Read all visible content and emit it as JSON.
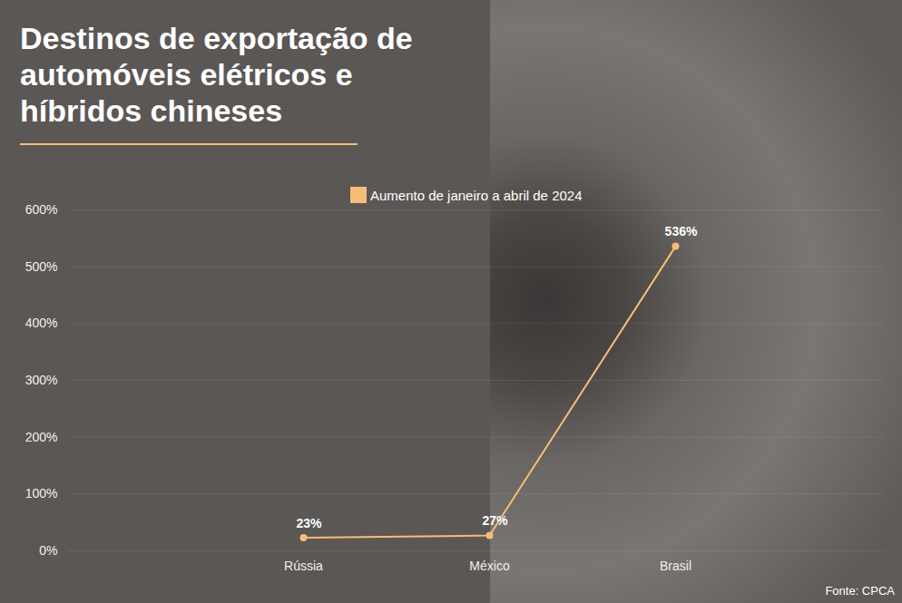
{
  "chart_data": {
    "type": "line",
    "title": "Destinos de exportação de automóveis elétricos e híbridos chineses",
    "categories": [
      "Rússia",
      "México",
      "Brasil"
    ],
    "series": [
      {
        "name": "Aumento de janeiro a abril de 2024",
        "color": "#f6bd78",
        "values": [
          23,
          27,
          536
        ],
        "marker": "circle",
        "line_style": "solid"
      }
    ],
    "value_labels": [
      "23%",
      "27%",
      "536%"
    ],
    "data_labels": true,
    "ylim": [
      0,
      600
    ],
    "yticks": [
      {
        "value": 0,
        "label": "0%"
      },
      {
        "value": 100,
        "label": "100%"
      },
      {
        "value": 200,
        "label": "200%"
      },
      {
        "value": 300,
        "label": "300%"
      },
      {
        "value": 400,
        "label": "400%"
      },
      {
        "value": 500,
        "label": "500%"
      },
      {
        "value": 600,
        "label": "600%"
      }
    ],
    "grid": true,
    "legend": "top",
    "source": "Fonte: CPCA"
  }
}
